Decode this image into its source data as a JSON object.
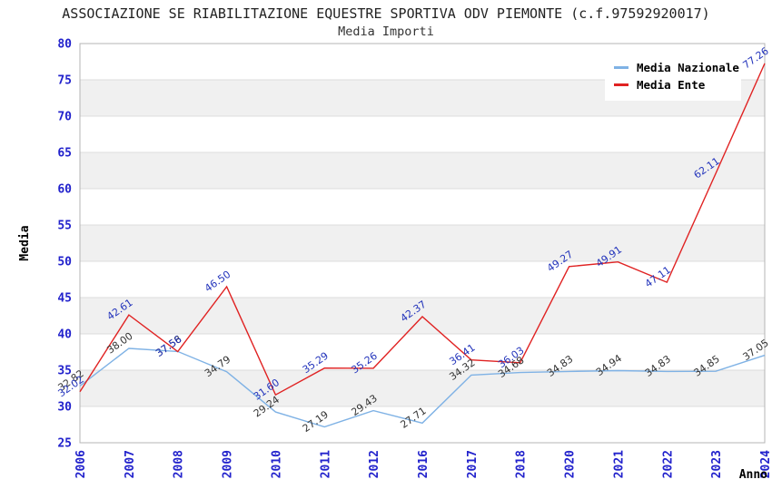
{
  "header": {
    "title": "ASSOCIAZIONE SE RIABILITAZIONE EQUESTRE SPORTIVA ODV PIEMONTE (c.f.97592920017)",
    "subtitle": "Media Importi"
  },
  "colors": {
    "axis_tick_text": "#2222cc",
    "axis_label_text": "#000000",
    "band_gray": "#f0f0f0",
    "band_white": "#ffffff",
    "gridline": "#dcdcdc",
    "plot_border": "#b4b4b4"
  },
  "chart_data": {
    "type": "line",
    "title": "ASSOCIAZIONE SE RIABILITAZIONE EQUESTRE SPORTIVA ODV PIEMONTE (c.f.97592920017)",
    "subtitle": "Media Importi",
    "xlabel": "Anno",
    "ylabel": "Media",
    "ylim": [
      25,
      80
    ],
    "ytick_step": 5,
    "grid": true,
    "legend_position": "top-right",
    "categories": [
      "2006",
      "2007",
      "2008",
      "2009",
      "2010",
      "2011",
      "2012",
      "2016",
      "2017",
      "2018",
      "2020",
      "2021",
      "2022",
      "2023",
      "2024"
    ],
    "series": [
      {
        "name": "Media Nazionale",
        "color": "#7fb2e5",
        "label_color": "#333333",
        "values": [
          32.82,
          38.0,
          37.58,
          34.79,
          29.24,
          27.19,
          29.43,
          27.71,
          34.32,
          34.68,
          34.83,
          34.94,
          34.83,
          34.85,
          37.05
        ]
      },
      {
        "name": "Media Ente",
        "color": "#e02222",
        "label_color": "#2233bb",
        "values": [
          32.02,
          42.61,
          37.56,
          46.5,
          31.6,
          35.29,
          35.26,
          42.37,
          36.41,
          36.03,
          49.27,
          49.91,
          47.11,
          62.11,
          77.26
        ]
      }
    ]
  }
}
